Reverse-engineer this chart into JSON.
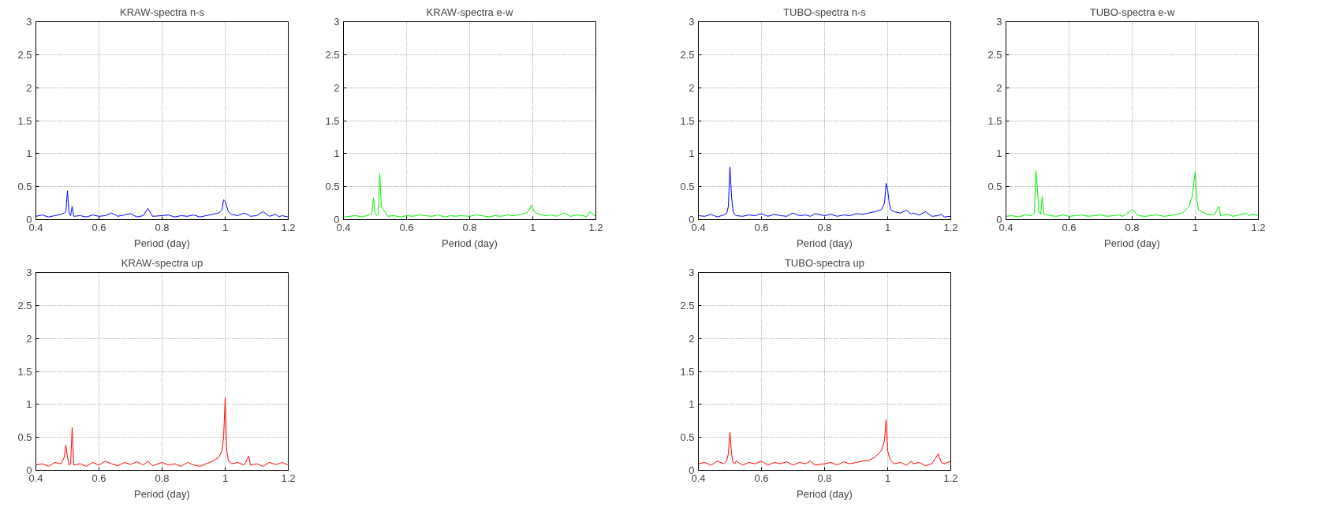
{
  "chart_data": [
    {
      "type": "line",
      "title": "KRAW-spectra n-s",
      "xlabel": "Period (day)",
      "xlim": [
        0.4,
        1.2
      ],
      "ylim": [
        0,
        3
      ],
      "xticks": [
        0.4,
        0.6,
        0.8,
        1,
        1.2
      ],
      "yticks": [
        0,
        0.5,
        1,
        1.5,
        2,
        2.5,
        3
      ],
      "grid": true,
      "x": [
        0.4,
        0.42,
        0.44,
        0.46,
        0.48,
        0.49,
        0.495,
        0.5,
        0.505,
        0.51,
        0.515,
        0.52,
        0.54,
        0.56,
        0.58,
        0.6,
        0.62,
        0.64,
        0.66,
        0.68,
        0.7,
        0.72,
        0.74,
        0.755,
        0.77,
        0.8,
        0.82,
        0.84,
        0.86,
        0.88,
        0.9,
        0.92,
        0.94,
        0.96,
        0.98,
        0.99,
        0.995,
        1.0,
        1.005,
        1.01,
        1.02,
        1.04,
        1.06,
        1.075,
        1.08,
        1.1,
        1.12,
        1.14,
        1.16,
        1.17,
        1.18,
        1.2
      ],
      "series": [
        {
          "color": "#0000ff",
          "values": [
            0.05,
            0.07,
            0.04,
            0.06,
            0.08,
            0.1,
            0.12,
            0.44,
            0.1,
            0.06,
            0.2,
            0.05,
            0.06,
            0.04,
            0.07,
            0.05,
            0.06,
            0.1,
            0.05,
            0.07,
            0.09,
            0.04,
            0.06,
            0.17,
            0.05,
            0.06,
            0.07,
            0.04,
            0.06,
            0.05,
            0.07,
            0.04,
            0.06,
            0.08,
            0.1,
            0.15,
            0.3,
            0.28,
            0.2,
            0.12,
            0.08,
            0.06,
            0.1,
            0.07,
            0.05,
            0.06,
            0.12,
            0.05,
            0.08,
            0.04,
            0.06,
            0.04
          ]
        }
      ]
    },
    {
      "type": "line",
      "title": "KRAW-spectra e-w",
      "xlabel": "Period (day)",
      "xlim": [
        0.4,
        1.2
      ],
      "ylim": [
        0,
        3
      ],
      "xticks": [
        0.4,
        0.6,
        0.8,
        1,
        1.2
      ],
      "yticks": [
        0,
        0.5,
        1,
        1.5,
        2,
        2.5,
        3
      ],
      "grid": true,
      "x": [
        0.4,
        0.42,
        0.44,
        0.46,
        0.48,
        0.49,
        0.495,
        0.5,
        0.505,
        0.51,
        0.515,
        0.52,
        0.54,
        0.56,
        0.58,
        0.6,
        0.62,
        0.64,
        0.66,
        0.68,
        0.7,
        0.72,
        0.74,
        0.755,
        0.77,
        0.8,
        0.82,
        0.84,
        0.86,
        0.88,
        0.9,
        0.92,
        0.94,
        0.96,
        0.98,
        0.99,
        0.995,
        1.0,
        1.005,
        1.01,
        1.02,
        1.04,
        1.06,
        1.075,
        1.08,
        1.1,
        1.12,
        1.14,
        1.16,
        1.17,
        1.18,
        1.2
      ],
      "series": [
        {
          "color": "#00ee00",
          "values": [
            0.04,
            0.05,
            0.06,
            0.04,
            0.07,
            0.1,
            0.33,
            0.1,
            0.06,
            0.08,
            0.7,
            0.2,
            0.05,
            0.06,
            0.04,
            0.06,
            0.05,
            0.07,
            0.06,
            0.05,
            0.07,
            0.04,
            0.06,
            0.05,
            0.06,
            0.05,
            0.07,
            0.06,
            0.04,
            0.06,
            0.05,
            0.07,
            0.06,
            0.08,
            0.1,
            0.15,
            0.22,
            0.18,
            0.12,
            0.1,
            0.08,
            0.06,
            0.07,
            0.05,
            0.06,
            0.1,
            0.05,
            0.07,
            0.06,
            0.04,
            0.12,
            0.05
          ]
        }
      ]
    },
    {
      "type": "line",
      "title": "TUBO-spectra n-s",
      "xlabel": "Period (day)",
      "xlim": [
        0.4,
        1.2
      ],
      "ylim": [
        0,
        3
      ],
      "xticks": [
        0.4,
        0.6,
        0.8,
        1,
        1.2
      ],
      "yticks": [
        0,
        0.5,
        1,
        1.5,
        2,
        2.5,
        3
      ],
      "grid": true,
      "x": [
        0.4,
        0.42,
        0.44,
        0.46,
        0.48,
        0.49,
        0.495,
        0.5,
        0.505,
        0.51,
        0.515,
        0.52,
        0.54,
        0.56,
        0.58,
        0.6,
        0.62,
        0.64,
        0.66,
        0.68,
        0.7,
        0.72,
        0.74,
        0.755,
        0.77,
        0.8,
        0.82,
        0.84,
        0.86,
        0.88,
        0.9,
        0.92,
        0.94,
        0.96,
        0.98,
        0.99,
        0.995,
        1.0,
        1.005,
        1.01,
        1.02,
        1.04,
        1.06,
        1.075,
        1.08,
        1.1,
        1.12,
        1.14,
        1.16,
        1.17,
        1.18,
        1.2
      ],
      "series": [
        {
          "color": "#0000ff",
          "values": [
            0.06,
            0.05,
            0.08,
            0.04,
            0.07,
            0.1,
            0.2,
            0.8,
            0.35,
            0.12,
            0.08,
            0.06,
            0.05,
            0.07,
            0.06,
            0.09,
            0.05,
            0.08,
            0.06,
            0.05,
            0.1,
            0.06,
            0.07,
            0.05,
            0.09,
            0.06,
            0.08,
            0.05,
            0.07,
            0.06,
            0.09,
            0.08,
            0.1,
            0.12,
            0.15,
            0.25,
            0.55,
            0.45,
            0.25,
            0.15,
            0.12,
            0.1,
            0.14,
            0.08,
            0.1,
            0.07,
            0.12,
            0.05,
            0.06,
            0.08,
            0.04,
            0.05
          ]
        }
      ]
    },
    {
      "type": "line",
      "title": "TUBO-spectra e-w",
      "xlabel": "Period (day)",
      "xlim": [
        0.4,
        1.2
      ],
      "ylim": [
        0,
        3
      ],
      "xticks": [
        0.4,
        0.6,
        0.8,
        1,
        1.2
      ],
      "yticks": [
        0,
        0.5,
        1,
        1.5,
        2,
        2.5,
        3
      ],
      "grid": true,
      "x": [
        0.4,
        0.42,
        0.44,
        0.46,
        0.48,
        0.49,
        0.495,
        0.5,
        0.505,
        0.51,
        0.515,
        0.52,
        0.54,
        0.56,
        0.58,
        0.6,
        0.62,
        0.64,
        0.66,
        0.68,
        0.7,
        0.72,
        0.74,
        0.755,
        0.77,
        0.8,
        0.82,
        0.84,
        0.86,
        0.88,
        0.9,
        0.92,
        0.94,
        0.96,
        0.98,
        0.99,
        0.995,
        1.0,
        1.005,
        1.01,
        1.02,
        1.04,
        1.06,
        1.075,
        1.08,
        1.1,
        1.12,
        1.14,
        1.16,
        1.17,
        1.18,
        1.2
      ],
      "series": [
        {
          "color": "#00ee00",
          "values": [
            0.05,
            0.06,
            0.04,
            0.07,
            0.06,
            0.1,
            0.75,
            0.45,
            0.1,
            0.08,
            0.35,
            0.08,
            0.06,
            0.05,
            0.07,
            0.05,
            0.06,
            0.07,
            0.05,
            0.06,
            0.07,
            0.05,
            0.06,
            0.07,
            0.05,
            0.15,
            0.06,
            0.05,
            0.06,
            0.07,
            0.05,
            0.06,
            0.08,
            0.1,
            0.2,
            0.35,
            0.55,
            0.72,
            0.3,
            0.15,
            0.12,
            0.08,
            0.07,
            0.2,
            0.06,
            0.08,
            0.05,
            0.07,
            0.1,
            0.06,
            0.08,
            0.06
          ]
        }
      ]
    },
    {
      "type": "line",
      "title": "KRAW-spectra up",
      "xlabel": "Period (day)",
      "xlim": [
        0.4,
        1.2
      ],
      "ylim": [
        0,
        3
      ],
      "xticks": [
        0.4,
        0.6,
        0.8,
        1,
        1.2
      ],
      "yticks": [
        0,
        0.5,
        1,
        1.5,
        2,
        2.5,
        3
      ],
      "grid": true,
      "x": [
        0.4,
        0.42,
        0.44,
        0.46,
        0.48,
        0.49,
        0.495,
        0.5,
        0.505,
        0.51,
        0.515,
        0.52,
        0.54,
        0.56,
        0.58,
        0.6,
        0.62,
        0.64,
        0.66,
        0.68,
        0.7,
        0.72,
        0.74,
        0.755,
        0.77,
        0.8,
        0.82,
        0.84,
        0.86,
        0.88,
        0.9,
        0.92,
        0.94,
        0.96,
        0.98,
        0.99,
        0.995,
        1.0,
        1.005,
        1.01,
        1.02,
        1.04,
        1.06,
        1.075,
        1.08,
        1.1,
        1.12,
        1.14,
        1.16,
        1.17,
        1.18,
        1.2
      ],
      "series": [
        {
          "color": "#ff0000",
          "values": [
            0.08,
            0.1,
            0.06,
            0.12,
            0.1,
            0.2,
            0.38,
            0.2,
            0.08,
            0.1,
            0.65,
            0.08,
            0.1,
            0.06,
            0.12,
            0.08,
            0.14,
            0.1,
            0.07,
            0.12,
            0.09,
            0.13,
            0.08,
            0.14,
            0.07,
            0.12,
            0.08,
            0.1,
            0.06,
            0.12,
            0.08,
            0.06,
            0.1,
            0.14,
            0.2,
            0.3,
            0.5,
            1.1,
            0.3,
            0.15,
            0.1,
            0.12,
            0.08,
            0.22,
            0.08,
            0.1,
            0.06,
            0.12,
            0.09,
            0.1,
            0.12,
            0.08
          ]
        }
      ]
    },
    {
      "type": "line",
      "title": "TUBO-spectra up",
      "xlabel": "Period (day)",
      "xlim": [
        0.4,
        1.2
      ],
      "ylim": [
        0,
        3
      ],
      "xticks": [
        0.4,
        0.6,
        0.8,
        1,
        1.2
      ],
      "yticks": [
        0,
        0.5,
        1,
        1.5,
        2,
        2.5,
        3
      ],
      "grid": true,
      "x": [
        0.4,
        0.42,
        0.44,
        0.46,
        0.48,
        0.49,
        0.495,
        0.5,
        0.505,
        0.51,
        0.515,
        0.52,
        0.54,
        0.56,
        0.58,
        0.6,
        0.62,
        0.64,
        0.66,
        0.68,
        0.7,
        0.72,
        0.74,
        0.755,
        0.77,
        0.8,
        0.82,
        0.84,
        0.86,
        0.88,
        0.9,
        0.92,
        0.94,
        0.96,
        0.98,
        0.99,
        0.995,
        1.0,
        1.005,
        1.01,
        1.02,
        1.04,
        1.06,
        1.075,
        1.08,
        1.1,
        1.12,
        1.14,
        1.16,
        1.17,
        1.18,
        1.2
      ],
      "series": [
        {
          "color": "#ff0000",
          "values": [
            0.1,
            0.12,
            0.08,
            0.14,
            0.1,
            0.15,
            0.25,
            0.58,
            0.25,
            0.12,
            0.1,
            0.14,
            0.08,
            0.12,
            0.1,
            0.14,
            0.08,
            0.12,
            0.1,
            0.13,
            0.08,
            0.12,
            0.1,
            0.14,
            0.08,
            0.1,
            0.12,
            0.08,
            0.13,
            0.1,
            0.12,
            0.14,
            0.15,
            0.2,
            0.3,
            0.45,
            0.77,
            0.3,
            0.2,
            0.15,
            0.1,
            0.12,
            0.08,
            0.14,
            0.1,
            0.12,
            0.07,
            0.1,
            0.25,
            0.12,
            0.1,
            0.14
          ]
        }
      ]
    }
  ]
}
